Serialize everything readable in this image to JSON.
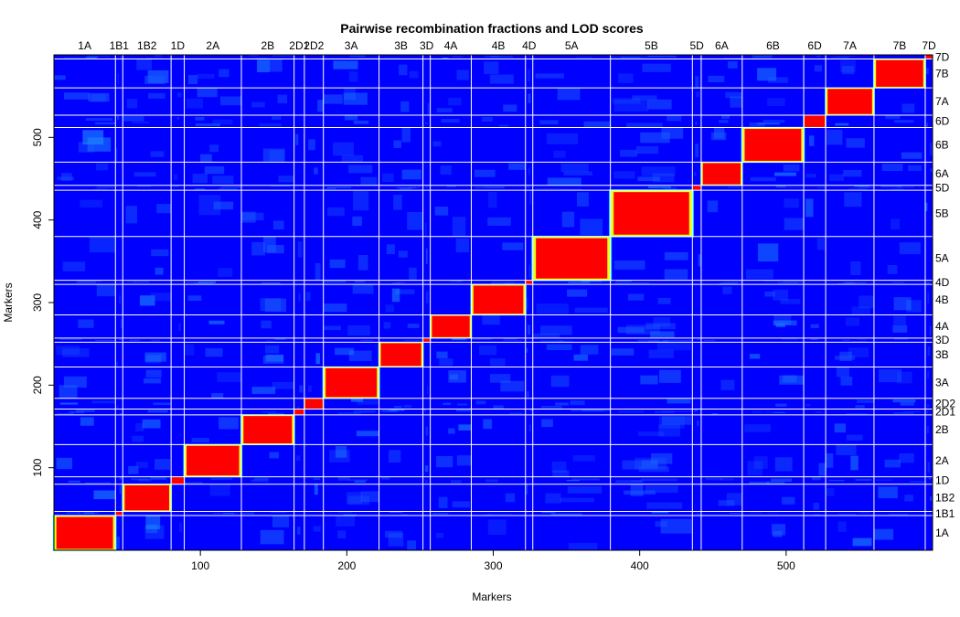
{
  "chart_data": {
    "type": "heatmap",
    "title": "Pairwise recombination fractions and LOD scores",
    "xlabel": "Markers",
    "ylabel": "Markers",
    "xlim": [
      0,
      600
    ],
    "ylim": [
      0,
      600
    ],
    "x_ticks": [
      100,
      200,
      300,
      400,
      500
    ],
    "y_ticks": [
      100,
      200,
      300,
      400,
      500
    ],
    "groups": [
      {
        "name": "1A",
        "start": 0,
        "end": 42
      },
      {
        "name": "1B1",
        "start": 42,
        "end": 47
      },
      {
        "name": "1B2",
        "start": 47,
        "end": 80
      },
      {
        "name": "1D",
        "start": 80,
        "end": 89
      },
      {
        "name": "2A",
        "start": 89,
        "end": 128
      },
      {
        "name": "2B",
        "start": 128,
        "end": 164
      },
      {
        "name": "2D1",
        "start": 164,
        "end": 171
      },
      {
        "name": "2D2",
        "start": 171,
        "end": 184
      },
      {
        "name": "3A",
        "start": 184,
        "end": 222
      },
      {
        "name": "3B",
        "start": 222,
        "end": 252
      },
      {
        "name": "3D",
        "start": 252,
        "end": 257
      },
      {
        "name": "4A",
        "start": 257,
        "end": 285
      },
      {
        "name": "4B",
        "start": 285,
        "end": 322
      },
      {
        "name": "4D",
        "start": 322,
        "end": 327
      },
      {
        "name": "5A",
        "start": 327,
        "end": 380
      },
      {
        "name": "5B",
        "start": 380,
        "end": 436
      },
      {
        "name": "5D",
        "start": 436,
        "end": 442
      },
      {
        "name": "6A",
        "start": 442,
        "end": 470
      },
      {
        "name": "6B",
        "start": 470,
        "end": 512
      },
      {
        "name": "6D",
        "start": 512,
        "end": 527
      },
      {
        "name": "7A",
        "start": 527,
        "end": 560
      },
      {
        "name": "7B",
        "start": 560,
        "end": 595
      },
      {
        "name": "7D",
        "start": 595,
        "end": 600
      }
    ],
    "color_scale": [
      "#0000ff",
      "#00ffff",
      "#ffff00",
      "#ff0000"
    ],
    "grid_color": "#ffffff",
    "grid": true
  }
}
